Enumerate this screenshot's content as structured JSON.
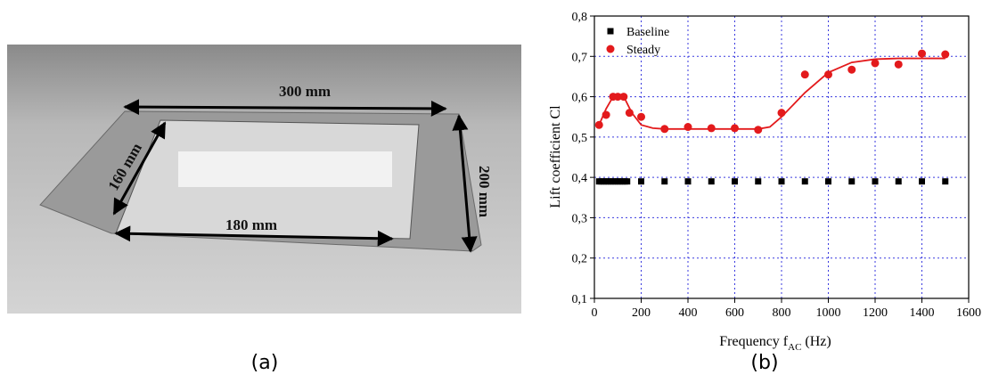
{
  "photo": {
    "labels": [
      "300 mm",
      "160 mm",
      "200 mm",
      "180 mm"
    ],
    "caption": "(a)"
  },
  "chart_data": {
    "type": "scatter",
    "caption": "(b)",
    "xlabel": [
      "Frequency f",
      "AC",
      "(Hz)"
    ],
    "ylabel": "Lift coefficient Cl",
    "xlim": [
      0,
      1600
    ],
    "xticks": [
      0,
      200,
      400,
      600,
      800,
      1000,
      1200,
      1400,
      1600
    ],
    "ylim": [
      0.1,
      0.8
    ],
    "yticks": [
      {
        "value": 0.1,
        "label": "0,1"
      },
      {
        "value": 0.2,
        "label": "0,2"
      },
      {
        "value": 0.3,
        "label": "0,3"
      },
      {
        "value": 0.4,
        "label": "0,4"
      },
      {
        "value": 0.5,
        "label": "0,5"
      },
      {
        "value": 0.6,
        "label": "0,6"
      },
      {
        "value": 0.7,
        "label": "0,7"
      },
      {
        "value": 0.8,
        "label": "0,8"
      }
    ],
    "grid": true,
    "legend": "upper left",
    "series": [
      {
        "name": "Baseline",
        "color": "#000000",
        "marker": "square",
        "x": [
          20,
          30,
          40,
          50,
          60,
          70,
          80,
          90,
          100,
          110,
          120,
          130,
          140,
          200,
          300,
          400,
          500,
          600,
          700,
          800,
          900,
          1000,
          1100,
          1200,
          1300,
          1400,
          1500
        ],
        "values": [
          0.39,
          0.39,
          0.39,
          0.39,
          0.39,
          0.39,
          0.39,
          0.39,
          0.39,
          0.39,
          0.39,
          0.39,
          0.39,
          0.39,
          0.39,
          0.39,
          0.39,
          0.39,
          0.39,
          0.39,
          0.39,
          0.39,
          0.39,
          0.39,
          0.39,
          0.39,
          0.39
        ]
      },
      {
        "name": "Steady",
        "color": "#e31a1c",
        "marker": "circle",
        "x": [
          20,
          50,
          80,
          100,
          125,
          150,
          200,
          300,
          400,
          500,
          600,
          700,
          800,
          900,
          1000,
          1100,
          1200,
          1300,
          1400,
          1500
        ],
        "values": [
          0.53,
          0.555,
          0.6,
          0.6,
          0.6,
          0.56,
          0.55,
          0.52,
          0.525,
          0.522,
          0.522,
          0.518,
          0.56,
          0.655,
          0.655,
          0.667,
          0.683,
          0.68,
          0.707,
          0.705
        ]
      }
    ],
    "fit": {
      "color": "#e31a1c",
      "x": [
        20,
        50,
        80,
        110,
        130,
        160,
        200,
        250,
        300,
        700,
        750,
        800,
        900,
        1000,
        1100,
        1200,
        1300,
        1500
      ],
      "values": [
        0.53,
        0.57,
        0.6,
        0.605,
        0.595,
        0.56,
        0.53,
        0.522,
        0.52,
        0.52,
        0.525,
        0.55,
        0.61,
        0.66,
        0.685,
        0.693,
        0.695,
        0.695
      ]
    }
  }
}
